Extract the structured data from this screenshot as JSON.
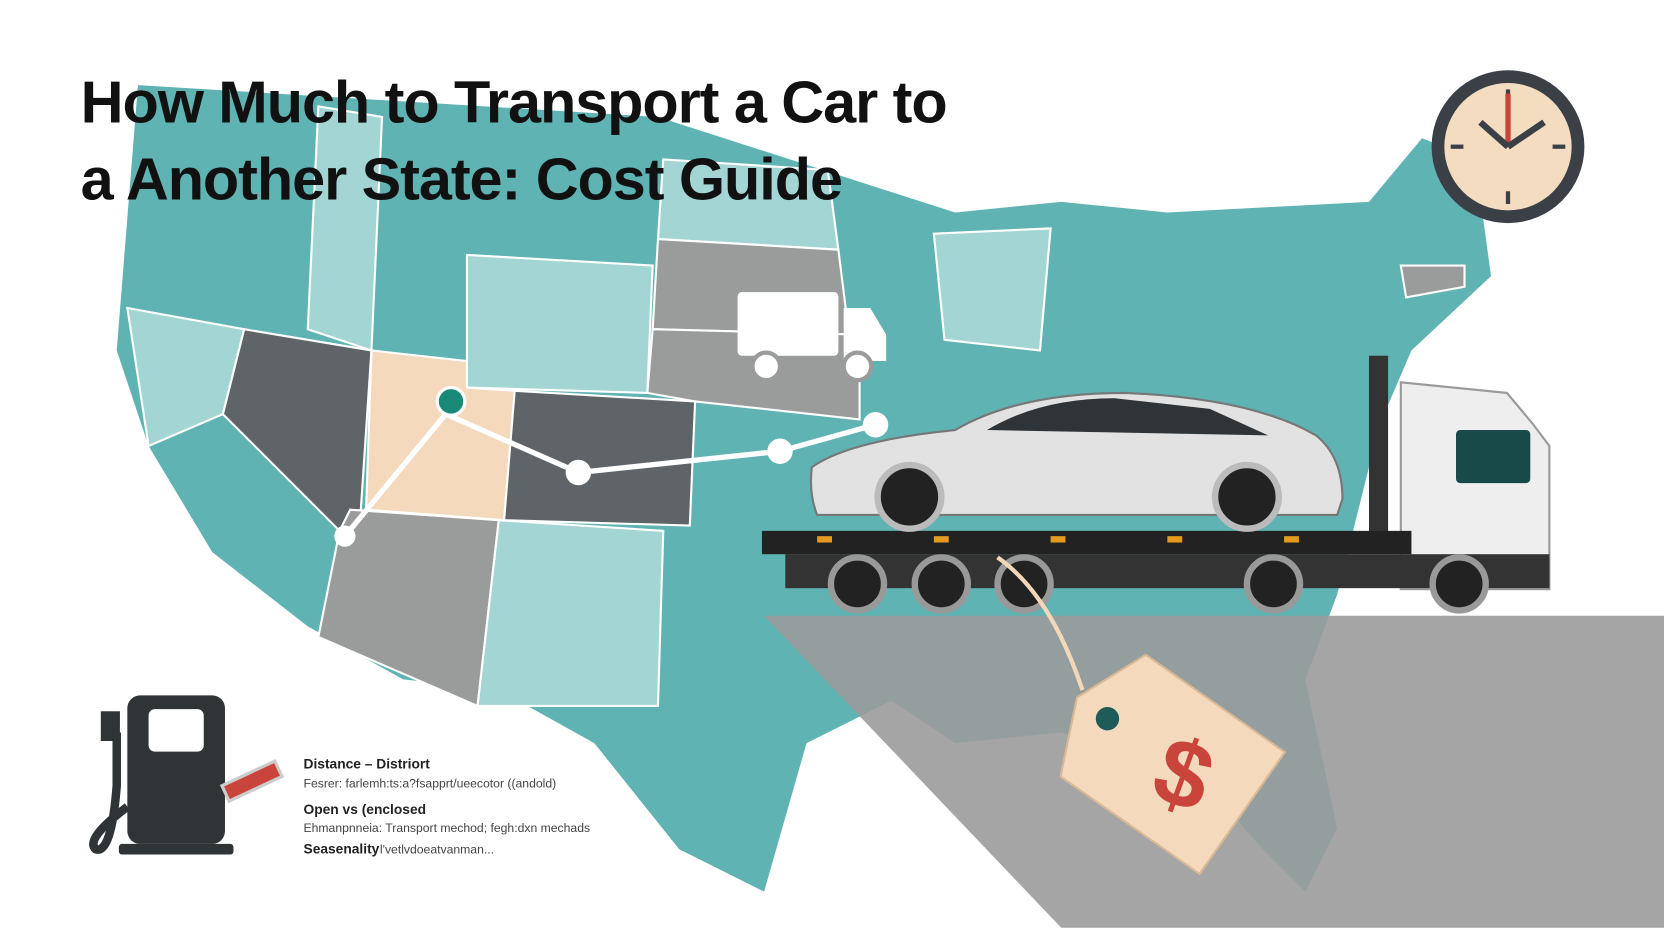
{
  "header": {
    "title_lines": [
      "How Much to Transport a Car to",
      "a Another State: Cost Guide"
    ]
  },
  "factors": [
    {
      "heading": "Distance – Distriort",
      "detail": "Fesrer: farlemh:ts:a?fsapprt/ueecotor ((andold)"
    },
    {
      "heading": "Open vs (enclosed",
      "detail": "Ehmanpnneia: Transport mechod; fegh:dxn mechads"
    },
    {
      "heading": "Seasenality",
      "detail": "l'vetlvdoeatvanman..."
    }
  ],
  "tag": {
    "symbol": "$"
  }
}
